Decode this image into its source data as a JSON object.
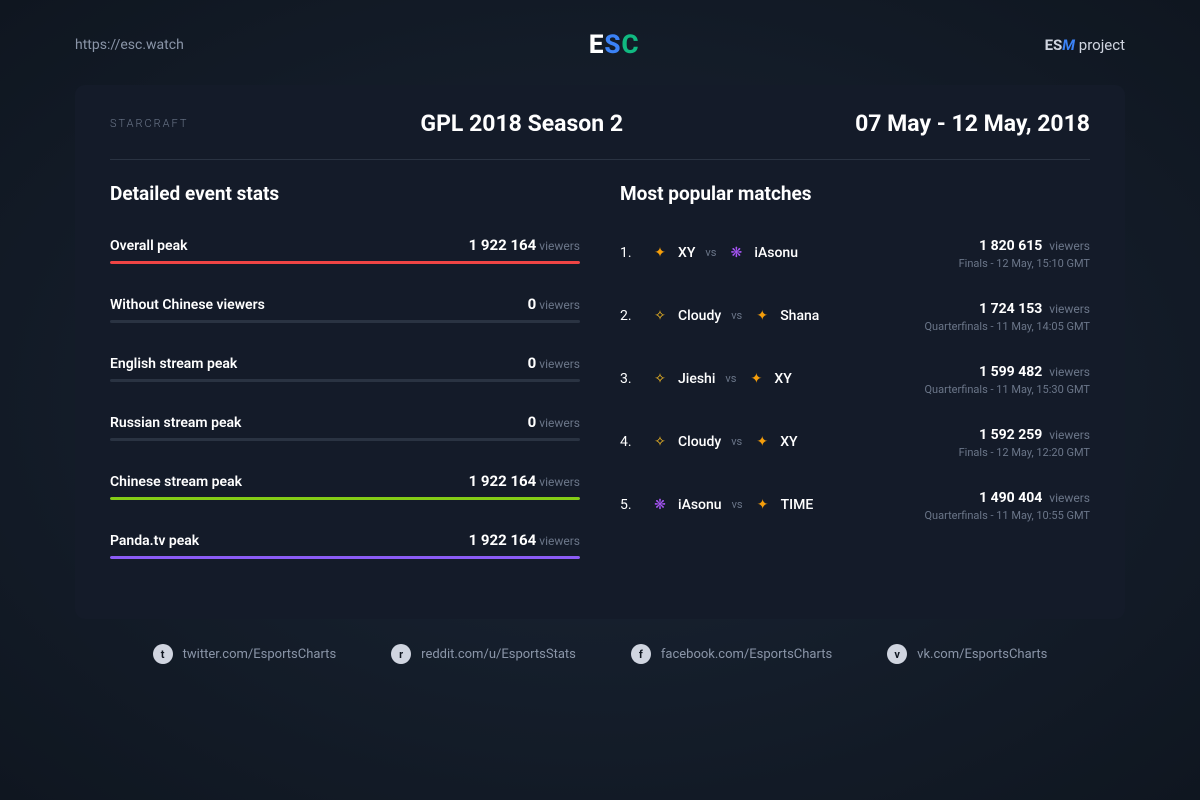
{
  "header": {
    "url": "https://esc.watch",
    "project_label": "project"
  },
  "card": {
    "game": "STARCRAFT",
    "event_title": "GPL 2018 Season 2",
    "date_range": "07 May - 12 May, 2018"
  },
  "stats": {
    "title": "Detailed event stats",
    "unit": "viewers",
    "max": 1922164,
    "rows": [
      {
        "label": "Overall peak",
        "value": "1 922 164",
        "num": 1922164,
        "color": "#ef4444"
      },
      {
        "label": "Without Chinese viewers",
        "value": "0",
        "num": 0,
        "color": "#3b82f6"
      },
      {
        "label": "English stream peak",
        "value": "0",
        "num": 0,
        "color": "#3b82f6"
      },
      {
        "label": "Russian stream peak",
        "value": "0",
        "num": 0,
        "color": "#3b82f6"
      },
      {
        "label": "Chinese stream peak",
        "value": "1 922 164",
        "num": 1922164,
        "color": "#84cc16"
      },
      {
        "label": "Panda.tv peak",
        "value": "1 922 164",
        "num": 1922164,
        "color": "#8b5cf6"
      }
    ]
  },
  "matches": {
    "title": "Most popular matches",
    "unit": "viewers",
    "rows": [
      {
        "rank": "1.",
        "p1": "XY",
        "r1": "terran",
        "p2": "iAsonu",
        "r2": "zerg",
        "viewers": "1 820 615",
        "meta": "Finals - 12 May, 15:10 GMT"
      },
      {
        "rank": "2.",
        "p1": "Cloudy",
        "r1": "protoss",
        "p2": "Shana",
        "r2": "terran",
        "viewers": "1 724 153",
        "meta": "Quarterfinals - 11 May, 14:05 GMT"
      },
      {
        "rank": "3.",
        "p1": "Jieshi",
        "r1": "protoss",
        "p2": "XY",
        "r2": "terran",
        "viewers": "1 599 482",
        "meta": "Quarterfinals - 11 May, 15:30 GMT"
      },
      {
        "rank": "4.",
        "p1": "Cloudy",
        "r1": "protoss",
        "p2": "XY",
        "r2": "terran",
        "viewers": "1 592 259",
        "meta": "Finals - 12 May, 12:20 GMT"
      },
      {
        "rank": "5.",
        "p1": "iAsonu",
        "r1": "zerg",
        "p2": "TIME",
        "r2": "terran",
        "viewers": "1 490 404",
        "meta": "Quarterfinals - 11 May, 10:55 GMT"
      }
    ]
  },
  "race_colors": {
    "terran": "#f59e0b",
    "zerg": "#a855f7",
    "protoss": "#fbbf24"
  },
  "race_glyphs": {
    "terran": "✦",
    "zerg": "❋",
    "protoss": "✧"
  },
  "footer": [
    {
      "icon": "t",
      "text": "twitter.com/EsportsCharts"
    },
    {
      "icon": "r",
      "text": "reddit.com/u/EsportsStats"
    },
    {
      "icon": "f",
      "text": "facebook.com/EsportsCharts"
    },
    {
      "icon": "v",
      "text": "vk.com/EsportsCharts"
    }
  ]
}
